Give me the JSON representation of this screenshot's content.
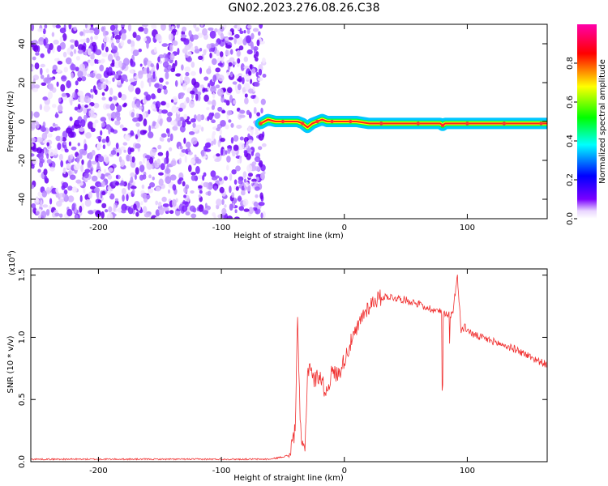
{
  "title": "GN02.2023.276.08.26.C38",
  "chart_data": [
    {
      "type": "heatmap",
      "xlabel": "Height of straight line (km)",
      "ylabel": "Frequency (Hz)",
      "xlim": [
        -255,
        165
      ],
      "ylim": [
        -50,
        50
      ],
      "xticks": [
        -200,
        -100,
        0,
        100
      ],
      "yticks": [
        -40,
        -20,
        0,
        20,
        40
      ],
      "noise_region": {
        "x": [
          -255,
          -65
        ],
        "y": [
          -50,
          50
        ]
      },
      "ridge": {
        "x": [
          -68,
          -62,
          -56,
          -50,
          -44,
          -38,
          -34,
          -30,
          -26,
          -22,
          -18,
          -14,
          -10,
          -5,
          0,
          5,
          10,
          20,
          30,
          40,
          50,
          60,
          70,
          78,
          80,
          82,
          90,
          100,
          110,
          120,
          130,
          140,
          150,
          160,
          165
        ],
        "y": [
          -1,
          1,
          0,
          0,
          0,
          0,
          -1,
          -3,
          -1,
          0,
          1,
          0,
          0,
          0,
          0,
          0,
          0,
          -1,
          -1,
          -1,
          -1,
          -1,
          -1,
          -1,
          -2,
          -1,
          -1,
          -1,
          -1,
          -1,
          -1,
          -1,
          -1,
          -1,
          -1
        ]
      },
      "colorbar": {
        "label": "Normalized spectral amplitude",
        "range": [
          0.0,
          1.0
        ],
        "ticks": [
          0.0,
          0.2,
          0.4,
          0.6,
          0.8
        ],
        "colors": [
          "#ffffff",
          "#7a00ff",
          "#0000ff",
          "#00ffff",
          "#00ff00",
          "#ffff00",
          "#ff0000",
          "#ff00aa"
        ]
      }
    },
    {
      "type": "line",
      "xlabel": "Height of straight line (km)",
      "ylabel": "SNR (10 * v/v)",
      "yscale_label": "(x10",
      "yscale_exp": "4",
      "yscale_close": ")",
      "xlim": [
        -255,
        165
      ],
      "ylim": [
        0,
        1.55
      ],
      "xticks": [
        -200,
        -100,
        0,
        100
      ],
      "yticks": [
        "0.0",
        "0.5",
        "1.0",
        "1.5"
      ],
      "ytick_values": [
        0,
        0.5,
        1.0,
        1.5
      ],
      "color": "#f03030",
      "series": [
        {
          "x": [
            -255,
            -200,
            -150,
            -100,
            -60,
            -45,
            -40,
            -38,
            -36,
            -34,
            -32,
            -30,
            -28,
            -25,
            -20,
            -15,
            -10,
            -5,
            0,
            5,
            10,
            15,
            20,
            25,
            30,
            35,
            40,
            45,
            50,
            60,
            70,
            80,
            88,
            92,
            95,
            98,
            105,
            120,
            140,
            160,
            165
          ],
          "y": [
            0.02,
            0.02,
            0.02,
            0.02,
            0.02,
            0.05,
            0.25,
            1.2,
            0.3,
            0.1,
            0.1,
            0.7,
            0.8,
            0.65,
            0.7,
            0.55,
            0.72,
            0.7,
            0.82,
            0.95,
            1.05,
            1.18,
            1.25,
            1.3,
            1.32,
            1.33,
            1.32,
            1.31,
            1.3,
            1.27,
            1.23,
            1.2,
            1.18,
            1.5,
            1.05,
            1.08,
            1.02,
            0.97,
            0.9,
            0.8,
            0.78
          ]
        }
      ]
    }
  ]
}
